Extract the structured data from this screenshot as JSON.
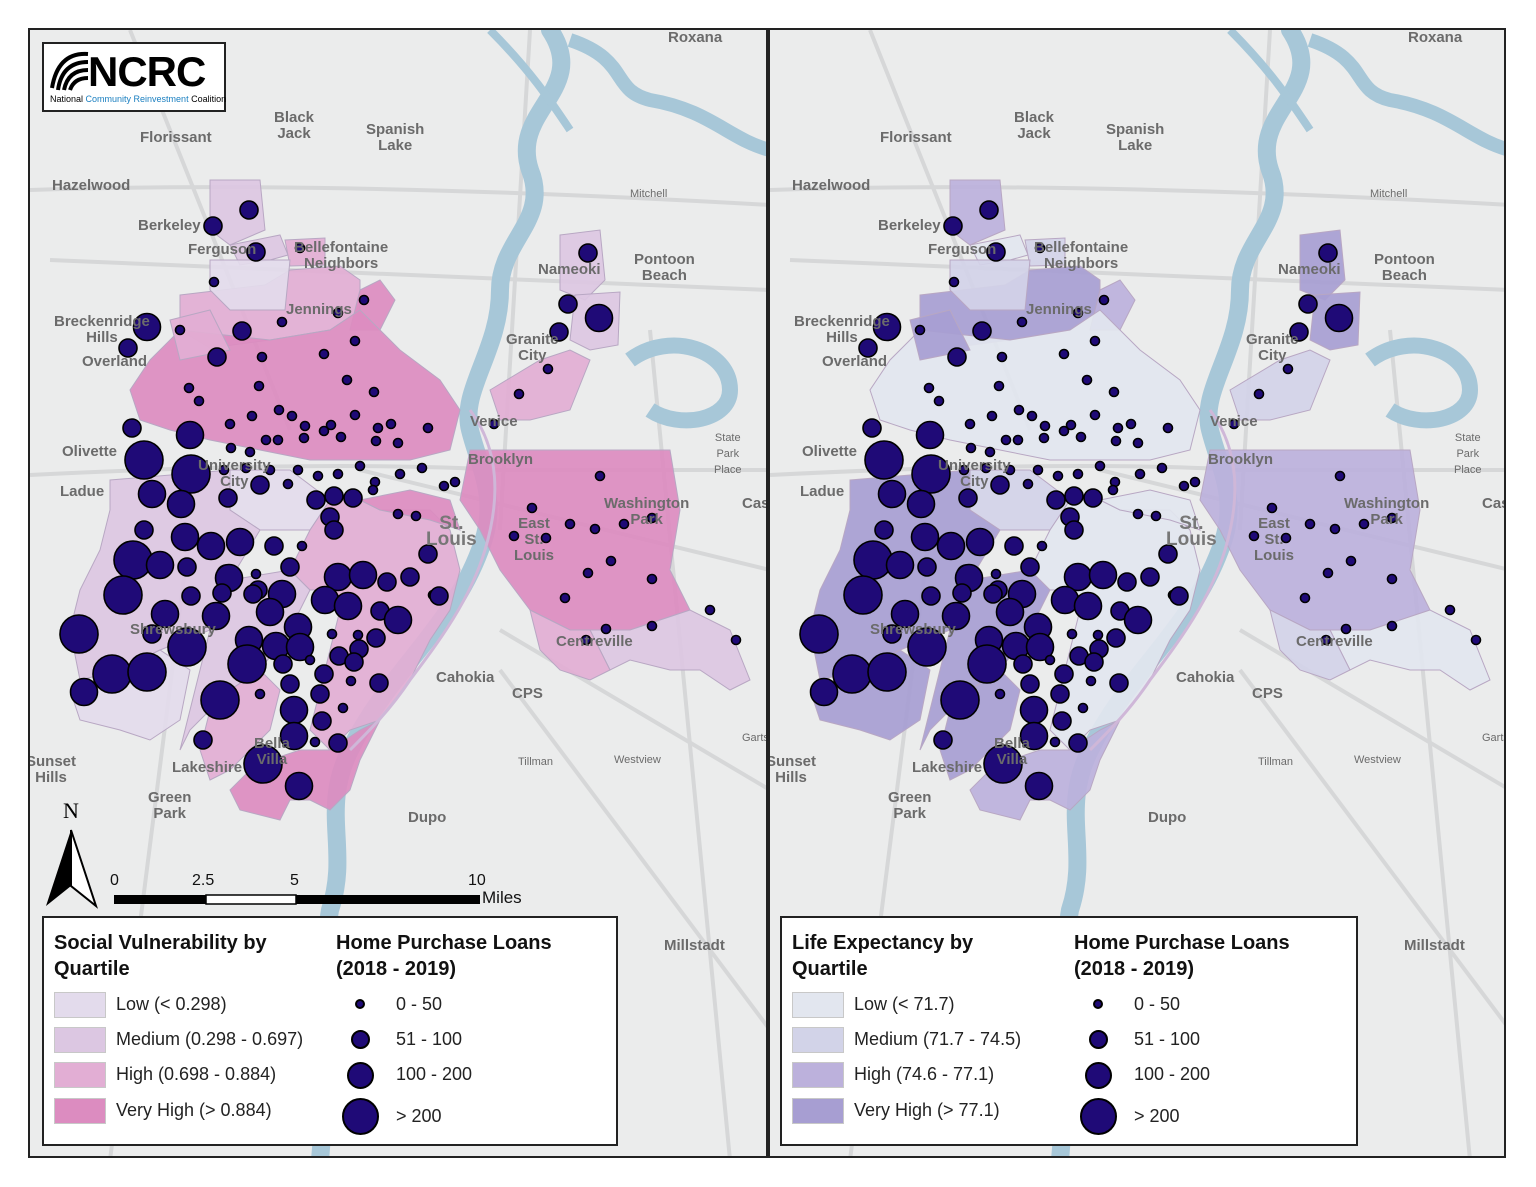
{
  "logo": {
    "name": "NCRC",
    "subtitle_part1": "National ",
    "subtitle_part2": "Community Reinvestment",
    "subtitle_part3": " Coalition"
  },
  "place_labels": [
    {
      "text": "Roxana",
      "cls": ""
    },
    {
      "text": "Florissant",
      "cls": ""
    },
    {
      "text": "Black\nJack",
      "cls": ""
    },
    {
      "text": "Spanish\nLake",
      "cls": ""
    },
    {
      "text": "Hazelwood",
      "cls": ""
    },
    {
      "text": "Mitchell",
      "cls": "small"
    },
    {
      "text": "Berkeley",
      "cls": ""
    },
    {
      "text": "Ferguson",
      "cls": ""
    },
    {
      "text": "Bellefontaine\nNeighbors",
      "cls": ""
    },
    {
      "text": "Pontoon\nBeach",
      "cls": ""
    },
    {
      "text": "Nameoki",
      "cls": ""
    },
    {
      "text": "Breckenridge\nHills",
      "cls": ""
    },
    {
      "text": "Overland",
      "cls": ""
    },
    {
      "text": "Jennings",
      "cls": ""
    },
    {
      "text": "Granite\nCity",
      "cls": ""
    },
    {
      "text": "Venice",
      "cls": ""
    },
    {
      "text": "State\nPark\nPlace",
      "cls": "small"
    },
    {
      "text": "Olivette",
      "cls": ""
    },
    {
      "text": "University\nCity",
      "cls": ""
    },
    {
      "text": "Brooklyn",
      "cls": ""
    },
    {
      "text": "Ladue",
      "cls": ""
    },
    {
      "text": "Washington\nPark",
      "cls": ""
    },
    {
      "text": "Cas",
      "cls": ""
    },
    {
      "text": "St.\nLouis",
      "cls": "big"
    },
    {
      "text": "East\nSt.\nLouis",
      "cls": ""
    },
    {
      "text": "Shrewsbury",
      "cls": ""
    },
    {
      "text": "Centreville",
      "cls": ""
    },
    {
      "text": "Cahokia",
      "cls": ""
    },
    {
      "text": "CPS",
      "cls": ""
    },
    {
      "text": "Bella\nVilla",
      "cls": ""
    },
    {
      "text": "Sunset\nHills",
      "cls": ""
    },
    {
      "text": "Lakeshire",
      "cls": ""
    },
    {
      "text": "Tillman",
      "cls": "small"
    },
    {
      "text": "Westview",
      "cls": "small"
    },
    {
      "text": "Garts",
      "cls": "small"
    },
    {
      "text": "Green\nPark",
      "cls": ""
    },
    {
      "text": "Dupo",
      "cls": ""
    },
    {
      "text": "Millstadt",
      "cls": ""
    }
  ],
  "scale_bar": {
    "ticks": [
      "0",
      "2.5",
      "5",
      "10"
    ],
    "unit": "Miles"
  },
  "north_arrow": {
    "letter": "N"
  },
  "left_map": {
    "legend_title": "Social Vulnerability by Quartile",
    "quartiles": [
      {
        "label": "Low (< 0.298)",
        "color": "#e3dbec"
      },
      {
        "label": "Medium (0.298 - 0.697)",
        "color": "#dcc7e2"
      },
      {
        "label": "High (0.698 - 0.884)",
        "color": "#e2aed4"
      },
      {
        "label": "Very High (> 0.884)",
        "color": "#dc8cc0"
      }
    ]
  },
  "right_map": {
    "legend_title": "Life Expectancy by Quartile",
    "quartiles": [
      {
        "label": "Low (< 71.7)",
        "color": "#e2e6ef"
      },
      {
        "label": "Medium (71.7 - 74.5)",
        "color": "#d2d3e8"
      },
      {
        "label": "High (74.6 - 77.1)",
        "color": "#bcb1dc"
      },
      {
        "label": "Very High (> 77.1)",
        "color": "#a79ed2"
      }
    ]
  },
  "loans_legend": {
    "title": "Home Purchase Loans (2018 - 2019)",
    "dot_color": "#1f0a77",
    "classes": [
      "0 - 50",
      "51 - 100",
      "100 - 200",
      "> 200"
    ]
  }
}
